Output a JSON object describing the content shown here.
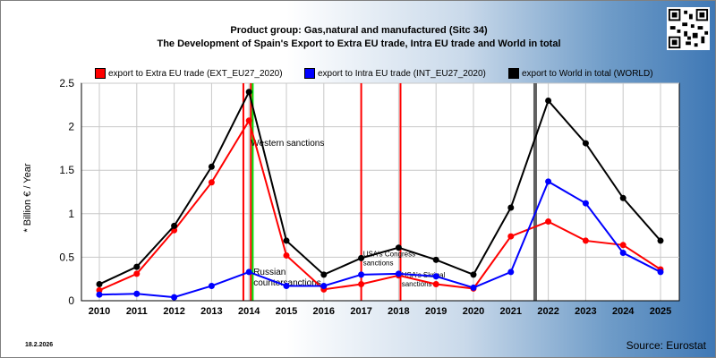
{
  "title_line1": "Product group: Gas,natural and manufactured (Sitc 34)",
  "title_line2": "The Development of Spain's Export to Extra EU trade, Intra EU trade and World in total",
  "footer_date": "18.2.2026",
  "footer_source": "Source: Eurostat",
  "chart_data": {
    "type": "line",
    "ylabel": "* Billion € / Year",
    "xlabel": "",
    "ylim": [
      0,
      2.5
    ],
    "yticks": [
      "0",
      "0.5",
      "1",
      "1.5",
      "2",
      "2.5"
    ],
    "x": [
      2010,
      2011,
      2012,
      2013,
      2014,
      2015,
      2016,
      2017,
      2018,
      2019,
      2020,
      2021,
      2022,
      2023,
      2024,
      2025
    ],
    "grid": true,
    "legend": "top",
    "series": [
      {
        "name": "export to Extra EU trade (EXT_EU27_2020)",
        "color": "#ff0000",
        "values": [
          0.12,
          0.31,
          0.81,
          1.36,
          2.07,
          0.52,
          0.13,
          0.19,
          0.29,
          0.19,
          0.14,
          0.74,
          0.91,
          0.69,
          0.64,
          0.36
        ]
      },
      {
        "name": "export to Intra EU trade (INT_EU27_2020)",
        "color": "#0000ff",
        "values": [
          0.07,
          0.08,
          0.04,
          0.17,
          0.33,
          0.17,
          0.17,
          0.3,
          0.31,
          0.28,
          0.15,
          0.33,
          1.37,
          1.12,
          0.55,
          0.33
        ]
      },
      {
        "name": "export to World in total (WORLD)",
        "color": "#000000",
        "values": [
          0.19,
          0.39,
          0.86,
          1.54,
          2.4,
          0.69,
          0.3,
          0.49,
          0.61,
          0.47,
          0.3,
          1.07,
          2.3,
          1.81,
          1.18,
          0.69
        ]
      }
    ],
    "events": [
      {
        "x": 2013.85,
        "color": "#ff0000",
        "label": ""
      },
      {
        "x": 2014.05,
        "color": "#ff0000",
        "label": "Western sanctions"
      },
      {
        "x": 2014.1,
        "color": "#00dd00",
        "label": "Russian countersanctions"
      },
      {
        "x": 2017.0,
        "color": "#ff0000",
        "label": "USA's Congress sanctions"
      },
      {
        "x": 2018.05,
        "color": "#ff0000",
        "label": "USA's Skripal sanctions"
      },
      {
        "x": 2021.65,
        "color": "#606060",
        "label": ""
      }
    ]
  }
}
